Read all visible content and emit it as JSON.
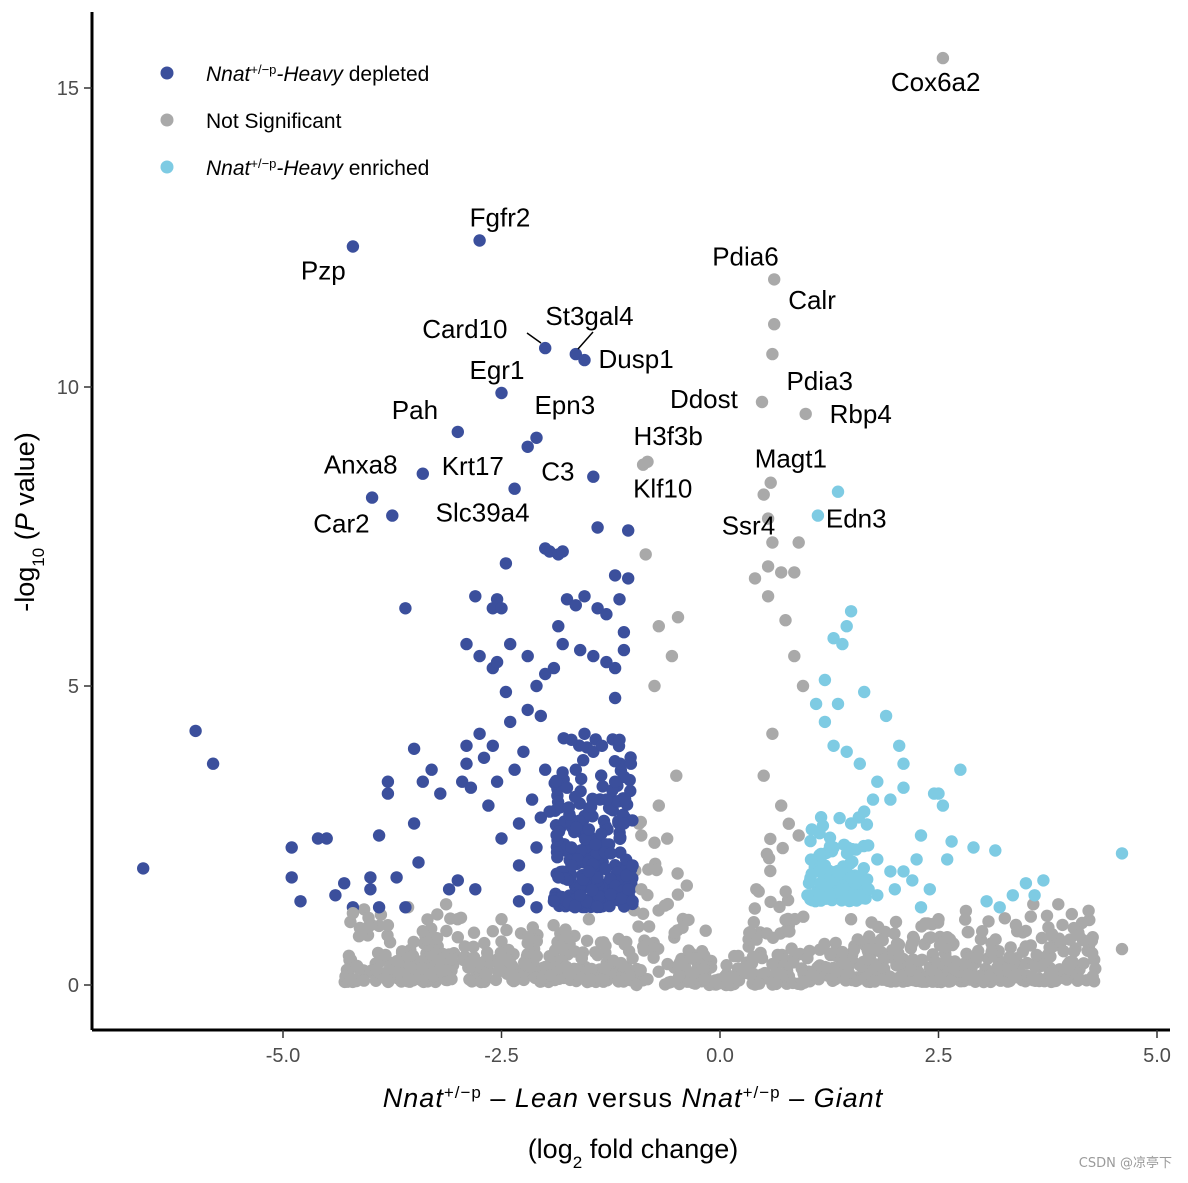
{
  "chart_data": {
    "type": "scatter",
    "title": "",
    "xlim": [
      -7.2,
      5.1
    ],
    "ylim": [
      -0.75,
      16.3
    ],
    "x_ticks": [
      -5.0,
      -2.5,
      0.0,
      2.5,
      5.0
    ],
    "x_tick_labels": [
      "-5.0",
      "-2.5",
      "0.0",
      "2.5",
      "5.0"
    ],
    "y_ticks": [
      0,
      5,
      10,
      15
    ],
    "y_tick_labels": [
      "0",
      "5",
      "10",
      "15"
    ],
    "grid": false,
    "legend_position": "top-left",
    "xlabel": {
      "line1": [
        {
          "t": "Nnat",
          "i": true
        },
        {
          "t": "+/−p",
          "sup": true
        },
        {
          "t": " – ",
          "i": false
        },
        {
          "t": "Lean",
          "i": true
        },
        {
          "t": " versus ",
          "i": false
        },
        {
          "t": "Nnat",
          "i": true
        },
        {
          "t": "+/−p",
          "sup": true
        },
        {
          "t": " – ",
          "i": false
        },
        {
          "t": "Giant",
          "i": true
        }
      ],
      "line2": [
        {
          "t": "(log",
          "i": false
        },
        {
          "t": "2",
          "sub": true
        },
        {
          "t": " fold change)",
          "i": false
        }
      ]
    },
    "ylabel": [
      {
        "t": "-log",
        "i": false
      },
      {
        "t": "10",
        "sub": true
      },
      {
        "t": " (",
        "i": false
      },
      {
        "t": "P",
        "i": true
      },
      {
        "t": " value)",
        "i": false
      }
    ],
    "series": [
      {
        "name": "Nnat+/−p-Heavy depleted",
        "name_parts": [
          {
            "t": "Nnat",
            "i": true
          },
          {
            "t": "+/−p",
            "sup": true
          },
          {
            "t": "-Heavy",
            "i": true
          },
          {
            "t": " depleted",
            "i": false
          }
        ],
        "color": "#3b4f9c",
        "points": [
          [
            -6.6,
            1.95
          ],
          [
            -6.0,
            4.25
          ],
          [
            -5.8,
            3.7
          ],
          [
            -4.9,
            2.3
          ],
          [
            -4.9,
            1.8
          ],
          [
            -4.8,
            1.4
          ],
          [
            -4.6,
            2.45
          ],
          [
            -4.5,
            2.45
          ],
          [
            -4.4,
            1.5
          ],
          [
            -4.3,
            1.7
          ],
          [
            -4.2,
            1.3
          ],
          [
            -4.0,
            1.8
          ],
          [
            -3.9,
            2.5
          ],
          [
            -3.8,
            3.4
          ],
          [
            -3.8,
            3.2
          ],
          [
            -3.7,
            1.8
          ],
          [
            -3.6,
            1.3
          ],
          [
            -3.5,
            3.95
          ],
          [
            -3.5,
            2.7
          ],
          [
            -3.45,
            2.05
          ],
          [
            -3.4,
            3.4
          ],
          [
            -3.3,
            3.6
          ],
          [
            -3.2,
            3.2
          ],
          [
            -3.1,
            1.6
          ],
          [
            -3.0,
            1.75
          ],
          [
            -2.95,
            3.4
          ],
          [
            -2.9,
            4.0
          ],
          [
            -2.9,
            3.7
          ],
          [
            -2.85,
            3.3
          ],
          [
            -2.8,
            1.6
          ],
          [
            -2.75,
            4.2
          ],
          [
            -2.7,
            3.8
          ],
          [
            -2.65,
            3.0
          ],
          [
            -2.6,
            4.0
          ],
          [
            -2.55,
            3.4
          ],
          [
            -2.5,
            2.45
          ],
          [
            -2.45,
            4.9
          ],
          [
            -2.4,
            4.4
          ],
          [
            -2.35,
            3.6
          ],
          [
            -2.3,
            2.7
          ],
          [
            -2.25,
            3.9
          ],
          [
            -2.2,
            4.6
          ],
          [
            -2.15,
            3.1
          ],
          [
            -2.1,
            2.3
          ],
          [
            -2.05,
            4.5
          ],
          [
            -2.0,
            3.6
          ],
          [
            -2.9,
            5.7
          ],
          [
            -2.75,
            5.5
          ],
          [
            -2.6,
            5.3
          ],
          [
            -2.4,
            5.7
          ],
          [
            -2.2,
            5.5
          ],
          [
            -1.9,
            5.3
          ],
          [
            -1.8,
            5.7
          ],
          [
            -1.6,
            5.6
          ],
          [
            -1.45,
            5.5
          ],
          [
            -1.3,
            5.4
          ],
          [
            -1.2,
            5.3
          ],
          [
            -1.1,
            5.6
          ],
          [
            -2.8,
            6.5
          ],
          [
            -2.6,
            6.3
          ],
          [
            -2.55,
            6.45
          ],
          [
            -2.5,
            6.3
          ],
          [
            -1.75,
            6.45
          ],
          [
            -1.65,
            6.35
          ],
          [
            -1.55,
            6.5
          ],
          [
            -1.4,
            6.3
          ],
          [
            -1.3,
            6.2
          ],
          [
            -1.15,
            6.45
          ],
          [
            -1.1,
            5.9
          ],
          [
            -1.05,
            6.8
          ],
          [
            -2.45,
            7.05
          ],
          [
            -2.0,
            7.3
          ],
          [
            -1.95,
            7.25
          ],
          [
            -1.85,
            7.2
          ],
          [
            -1.8,
            7.25
          ],
          [
            -1.4,
            7.65
          ],
          [
            -1.2,
            6.85
          ],
          [
            -1.05,
            7.6
          ],
          [
            -2.55,
            5.4
          ],
          [
            -2.1,
            5.0
          ],
          [
            -1.7,
            4.1
          ],
          [
            -1.2,
            4.8
          ],
          [
            -3.6,
            6.3
          ],
          [
            -3.75,
            7.85
          ],
          [
            -3.98,
            8.15
          ],
          [
            -3.4,
            8.55
          ],
          [
            -3.0,
            9.25
          ],
          [
            -2.35,
            8.3
          ],
          [
            -2.2,
            9.0
          ],
          [
            -2.1,
            9.15
          ],
          [
            -1.45,
            8.5
          ],
          [
            -2.5,
            9.9
          ],
          [
            -2.0,
            10.65
          ],
          [
            -1.65,
            10.55
          ],
          [
            -1.55,
            10.45
          ],
          [
            -2.75,
            12.45
          ],
          [
            -4.2,
            12.35
          ],
          [
            -1.85,
            6.0
          ],
          [
            -2.0,
            5.2
          ],
          [
            -2.3,
            2.0
          ],
          [
            -3.9,
            1.3
          ],
          [
            -4.0,
            1.6
          ],
          [
            -2.3,
            1.4
          ],
          [
            -2.2,
            1.6
          ],
          [
            -2.1,
            1.3
          ],
          [
            -2.05,
            2.8
          ],
          [
            -1.95,
            2.9
          ],
          [
            -1.9,
            1.4
          ],
          [
            -1.85,
            1.8
          ],
          [
            -1.75,
            3.3
          ],
          [
            -1.7,
            2.3
          ],
          [
            -1.65,
            3.6
          ],
          [
            -1.6,
            1.5
          ],
          [
            -1.55,
            4.2
          ],
          [
            -1.5,
            2.6
          ],
          [
            -1.45,
            3.9
          ],
          [
            -1.4,
            1.8
          ],
          [
            -1.35,
            4.0
          ],
          [
            -1.3,
            3.1
          ],
          [
            -1.25,
            2.2
          ],
          [
            -1.2,
            3.4
          ],
          [
            -1.15,
            4.1
          ],
          [
            -1.1,
            2.7
          ],
          [
            -1.05,
            1.6
          ],
          [
            -1.02,
            3.7
          ],
          [
            -1.0,
            2.0
          ],
          [
            -1.0,
            1.4
          ],
          [
            -1.7,
            2.0
          ],
          [
            -1.5,
            1.9
          ]
        ]
      },
      {
        "name": "Not Significant",
        "color": "#a9a9a9",
        "points": [
          [
            -4.2,
            1.2
          ],
          [
            -3.8,
            1.0
          ],
          [
            -3.4,
            0.9
          ],
          [
            -3.0,
            0.8
          ],
          [
            -2.6,
            0.9
          ],
          [
            -2.2,
            0.7
          ],
          [
            -1.8,
            0.6
          ],
          [
            -1.4,
            0.5
          ],
          [
            -1.0,
            0.45
          ],
          [
            -0.6,
            0.35
          ],
          [
            -0.3,
            0.2
          ],
          [
            0.3,
            0.2
          ],
          [
            0.6,
            0.35
          ],
          [
            1.0,
            0.45
          ],
          [
            1.4,
            0.55
          ],
          [
            1.8,
            0.6
          ],
          [
            2.2,
            0.7
          ],
          [
            2.6,
            0.8
          ],
          [
            3.0,
            0.9
          ],
          [
            3.4,
            0.9
          ],
          [
            3.8,
            0.85
          ],
          [
            4.6,
            0.6
          ],
          [
            -0.85,
            7.2
          ],
          [
            -0.7,
            6.0
          ],
          [
            -0.48,
            6.15
          ],
          [
            -0.55,
            5.5
          ],
          [
            -0.75,
            5.0
          ],
          [
            0.4,
            6.8
          ],
          [
            0.55,
            7.0
          ],
          [
            0.7,
            6.9
          ],
          [
            0.85,
            6.9
          ],
          [
            0.9,
            7.4
          ],
          [
            0.55,
            6.5
          ],
          [
            0.75,
            6.1
          ],
          [
            0.85,
            5.5
          ],
          [
            0.95,
            5.0
          ],
          [
            -0.88,
            8.7
          ],
          [
            -0.83,
            8.75
          ],
          [
            0.48,
            9.75
          ],
          [
            0.98,
            9.55
          ],
          [
            0.6,
            10.55
          ],
          [
            0.62,
            11.05
          ],
          [
            0.62,
            11.8
          ],
          [
            0.58,
            8.4
          ],
          [
            0.5,
            8.2
          ],
          [
            0.55,
            7.8
          ],
          [
            0.6,
            7.4
          ],
          [
            2.55,
            15.5
          ],
          [
            -2.5,
            1.1
          ],
          [
            -1.5,
            1.1
          ],
          [
            1.5,
            1.1
          ],
          [
            2.5,
            1.1
          ],
          [
            -0.9,
            2.5
          ],
          [
            -0.7,
            3.0
          ],
          [
            -0.5,
            3.5
          ],
          [
            -0.9,
            1.6
          ],
          [
            0.5,
            3.5
          ],
          [
            0.7,
            3.0
          ],
          [
            0.9,
            2.5
          ],
          [
            0.6,
            4.2
          ]
        ]
      },
      {
        "name": "Nnat+/−p-Heavy enriched",
        "name_parts": [
          {
            "t": "Nnat",
            "i": true
          },
          {
            "t": "+/−p",
            "sup": true
          },
          {
            "t": "-Heavy",
            "i": true
          },
          {
            "t": " enriched",
            "i": false
          }
        ],
        "color": "#7ecbe3",
        "points": [
          [
            1.35,
            8.25
          ],
          [
            1.12,
            7.85
          ],
          [
            1.5,
            6.25
          ],
          [
            1.45,
            6.0
          ],
          [
            1.3,
            5.8
          ],
          [
            1.4,
            5.7
          ],
          [
            1.2,
            5.1
          ],
          [
            1.65,
            4.9
          ],
          [
            1.35,
            4.7
          ],
          [
            1.9,
            4.5
          ],
          [
            1.1,
            4.7
          ],
          [
            1.2,
            4.4
          ],
          [
            2.05,
            4.0
          ],
          [
            1.3,
            4.0
          ],
          [
            1.45,
            3.9
          ],
          [
            1.6,
            3.7
          ],
          [
            2.1,
            3.7
          ],
          [
            2.75,
            3.6
          ],
          [
            1.8,
            3.4
          ],
          [
            2.45,
            3.2
          ],
          [
            2.55,
            3.0
          ],
          [
            2.5,
            3.2
          ],
          [
            1.75,
            3.1
          ],
          [
            1.95,
            3.1
          ],
          [
            2.1,
            3.3
          ],
          [
            1.5,
            2.7
          ],
          [
            1.65,
            2.9
          ],
          [
            2.3,
            2.5
          ],
          [
            2.65,
            2.4
          ],
          [
            2.9,
            2.3
          ],
          [
            3.15,
            2.25
          ],
          [
            1.8,
            2.1
          ],
          [
            1.95,
            1.9
          ],
          [
            2.1,
            1.9
          ],
          [
            2.25,
            2.1
          ],
          [
            2.6,
            2.1
          ],
          [
            2.2,
            1.75
          ],
          [
            2.4,
            1.6
          ],
          [
            3.05,
            1.4
          ],
          [
            3.35,
            1.5
          ],
          [
            3.5,
            1.7
          ],
          [
            3.7,
            1.75
          ],
          [
            4.6,
            2.2
          ],
          [
            1.2,
            2.0
          ],
          [
            1.3,
            2.3
          ],
          [
            1.4,
            1.6
          ],
          [
            1.5,
            1.8
          ],
          [
            1.6,
            1.5
          ],
          [
            1.7,
            1.6
          ],
          [
            1.8,
            1.5
          ],
          [
            2.0,
            1.6
          ],
          [
            2.3,
            1.3
          ],
          [
            3.2,
            1.3
          ],
          [
            3.6,
            1.5
          ],
          [
            1.0,
            1.5
          ],
          [
            1.05,
            2.6
          ],
          [
            1.15,
            1.7
          ],
          [
            1.25,
            1.5
          ]
        ]
      }
    ],
    "annotations": [
      {
        "text": "Cox6a2",
        "x": 2.55,
        "y": 15.5
      },
      {
        "text": "Fgfr2",
        "x": -2.75,
        "y": 12.45
      },
      {
        "text": "Pzp",
        "x": -4.2,
        "y": 12.35
      },
      {
        "text": "Pdia6",
        "x": 0.62,
        "y": 11.8
      },
      {
        "text": "Calr",
        "x": 0.62,
        "y": 11.05
      },
      {
        "text": "St3gal4",
        "x": -1.62,
        "y": 10.55
      },
      {
        "text": "Card10",
        "x": -2.0,
        "y": 10.65
      },
      {
        "text": "Dusp1",
        "x": -1.55,
        "y": 10.45
      },
      {
        "text": "Pdia3",
        "x": 0.6,
        "y": 10.55
      },
      {
        "text": "Egr1",
        "x": -2.5,
        "y": 9.9
      },
      {
        "text": "Ddost",
        "x": 0.48,
        "y": 9.75
      },
      {
        "text": "Rbp4",
        "x": 0.98,
        "y": 9.55
      },
      {
        "text": "Pah",
        "x": -3.0,
        "y": 9.25
      },
      {
        "text": "Epn3",
        "x": -2.1,
        "y": 9.15
      },
      {
        "text": "H3f3b",
        "x": -0.83,
        "y": 8.75
      },
      {
        "text": "Anxa8",
        "x": -3.4,
        "y": 8.55
      },
      {
        "text": "Krt17",
        "x": -2.2,
        "y": 9.0
      },
      {
        "text": "C3",
        "x": -1.45,
        "y": 8.5
      },
      {
        "text": "Magt1",
        "x": 0.58,
        "y": 8.4
      },
      {
        "text": "Klf10",
        "x": -0.88,
        "y": 8.7
      },
      {
        "text": "Car2",
        "x": -3.75,
        "y": 7.85
      },
      {
        "text": "Slc39a4",
        "x": -2.35,
        "y": 8.3
      },
      {
        "text": "Ssr4",
        "x": 0.5,
        "y": 8.2
      },
      {
        "text": "Edn3",
        "x": 1.12,
        "y": 7.85
      }
    ]
  },
  "watermark": "CSDN @凉亭下"
}
